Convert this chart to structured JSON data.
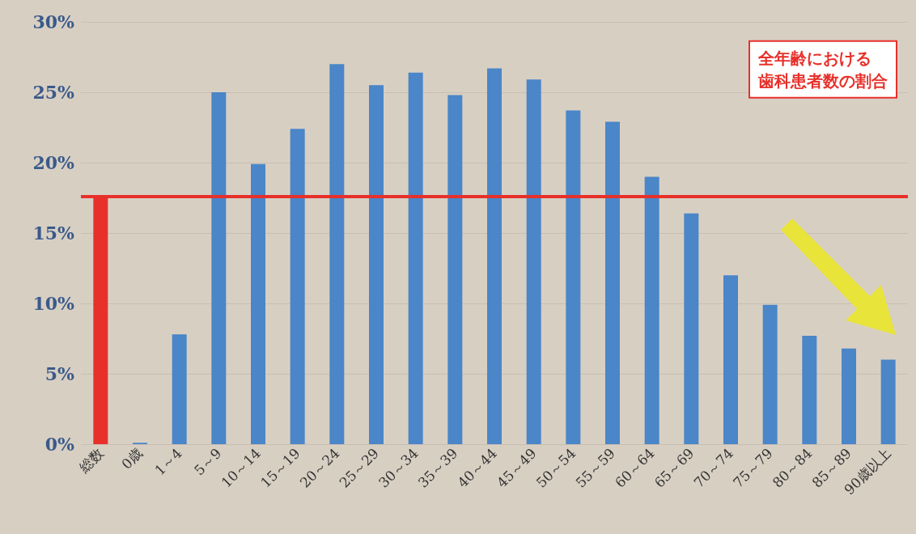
{
  "chart_data": {
    "type": "bar",
    "categories": [
      "総数",
      "0歳",
      "1～4",
      "5～9",
      "10～14",
      "15～19",
      "20～24",
      "25～29",
      "30～34",
      "35～39",
      "40～44",
      "45～49",
      "50～54",
      "55～59",
      "60～64",
      "65～69",
      "70～74",
      "75～79",
      "80～84",
      "85～89",
      "90歳以上"
    ],
    "values": [
      17.6,
      0.1,
      7.8,
      25.0,
      19.9,
      22.4,
      27.0,
      25.5,
      26.4,
      24.8,
      26.7,
      25.9,
      23.7,
      22.9,
      19.0,
      16.4,
      12.0,
      9.9,
      7.7,
      6.8,
      6.0
    ],
    "colors": [
      "#e8302a",
      "#4a86c8",
      "#4a86c8",
      "#4a86c8",
      "#4a86c8",
      "#4a86c8",
      "#4a86c8",
      "#4a86c8",
      "#4a86c8",
      "#4a86c8",
      "#4a86c8",
      "#4a86c8",
      "#4a86c8",
      "#4a86c8",
      "#4a86c8",
      "#4a86c8",
      "#4a86c8",
      "#4a86c8",
      "#4a86c8",
      "#4a86c8",
      "#4a86c8"
    ],
    "ylim": [
      0,
      30
    ],
    "yticks": [
      {
        "value": 0,
        "label": "0%"
      },
      {
        "value": 5,
        "label": "5%"
      },
      {
        "value": 10,
        "label": "10%"
      },
      {
        "value": 15,
        "label": "15%"
      },
      {
        "value": 20,
        "label": "20%"
      },
      {
        "value": 25,
        "label": "25%"
      },
      {
        "value": 30,
        "label": "30%"
      }
    ],
    "ref_lines": [
      {
        "axis": "y",
        "value": 17.6,
        "label": "全年齢における歯科患者数の割合",
        "color": "#e8302a"
      }
    ],
    "grid": "y"
  }
}
